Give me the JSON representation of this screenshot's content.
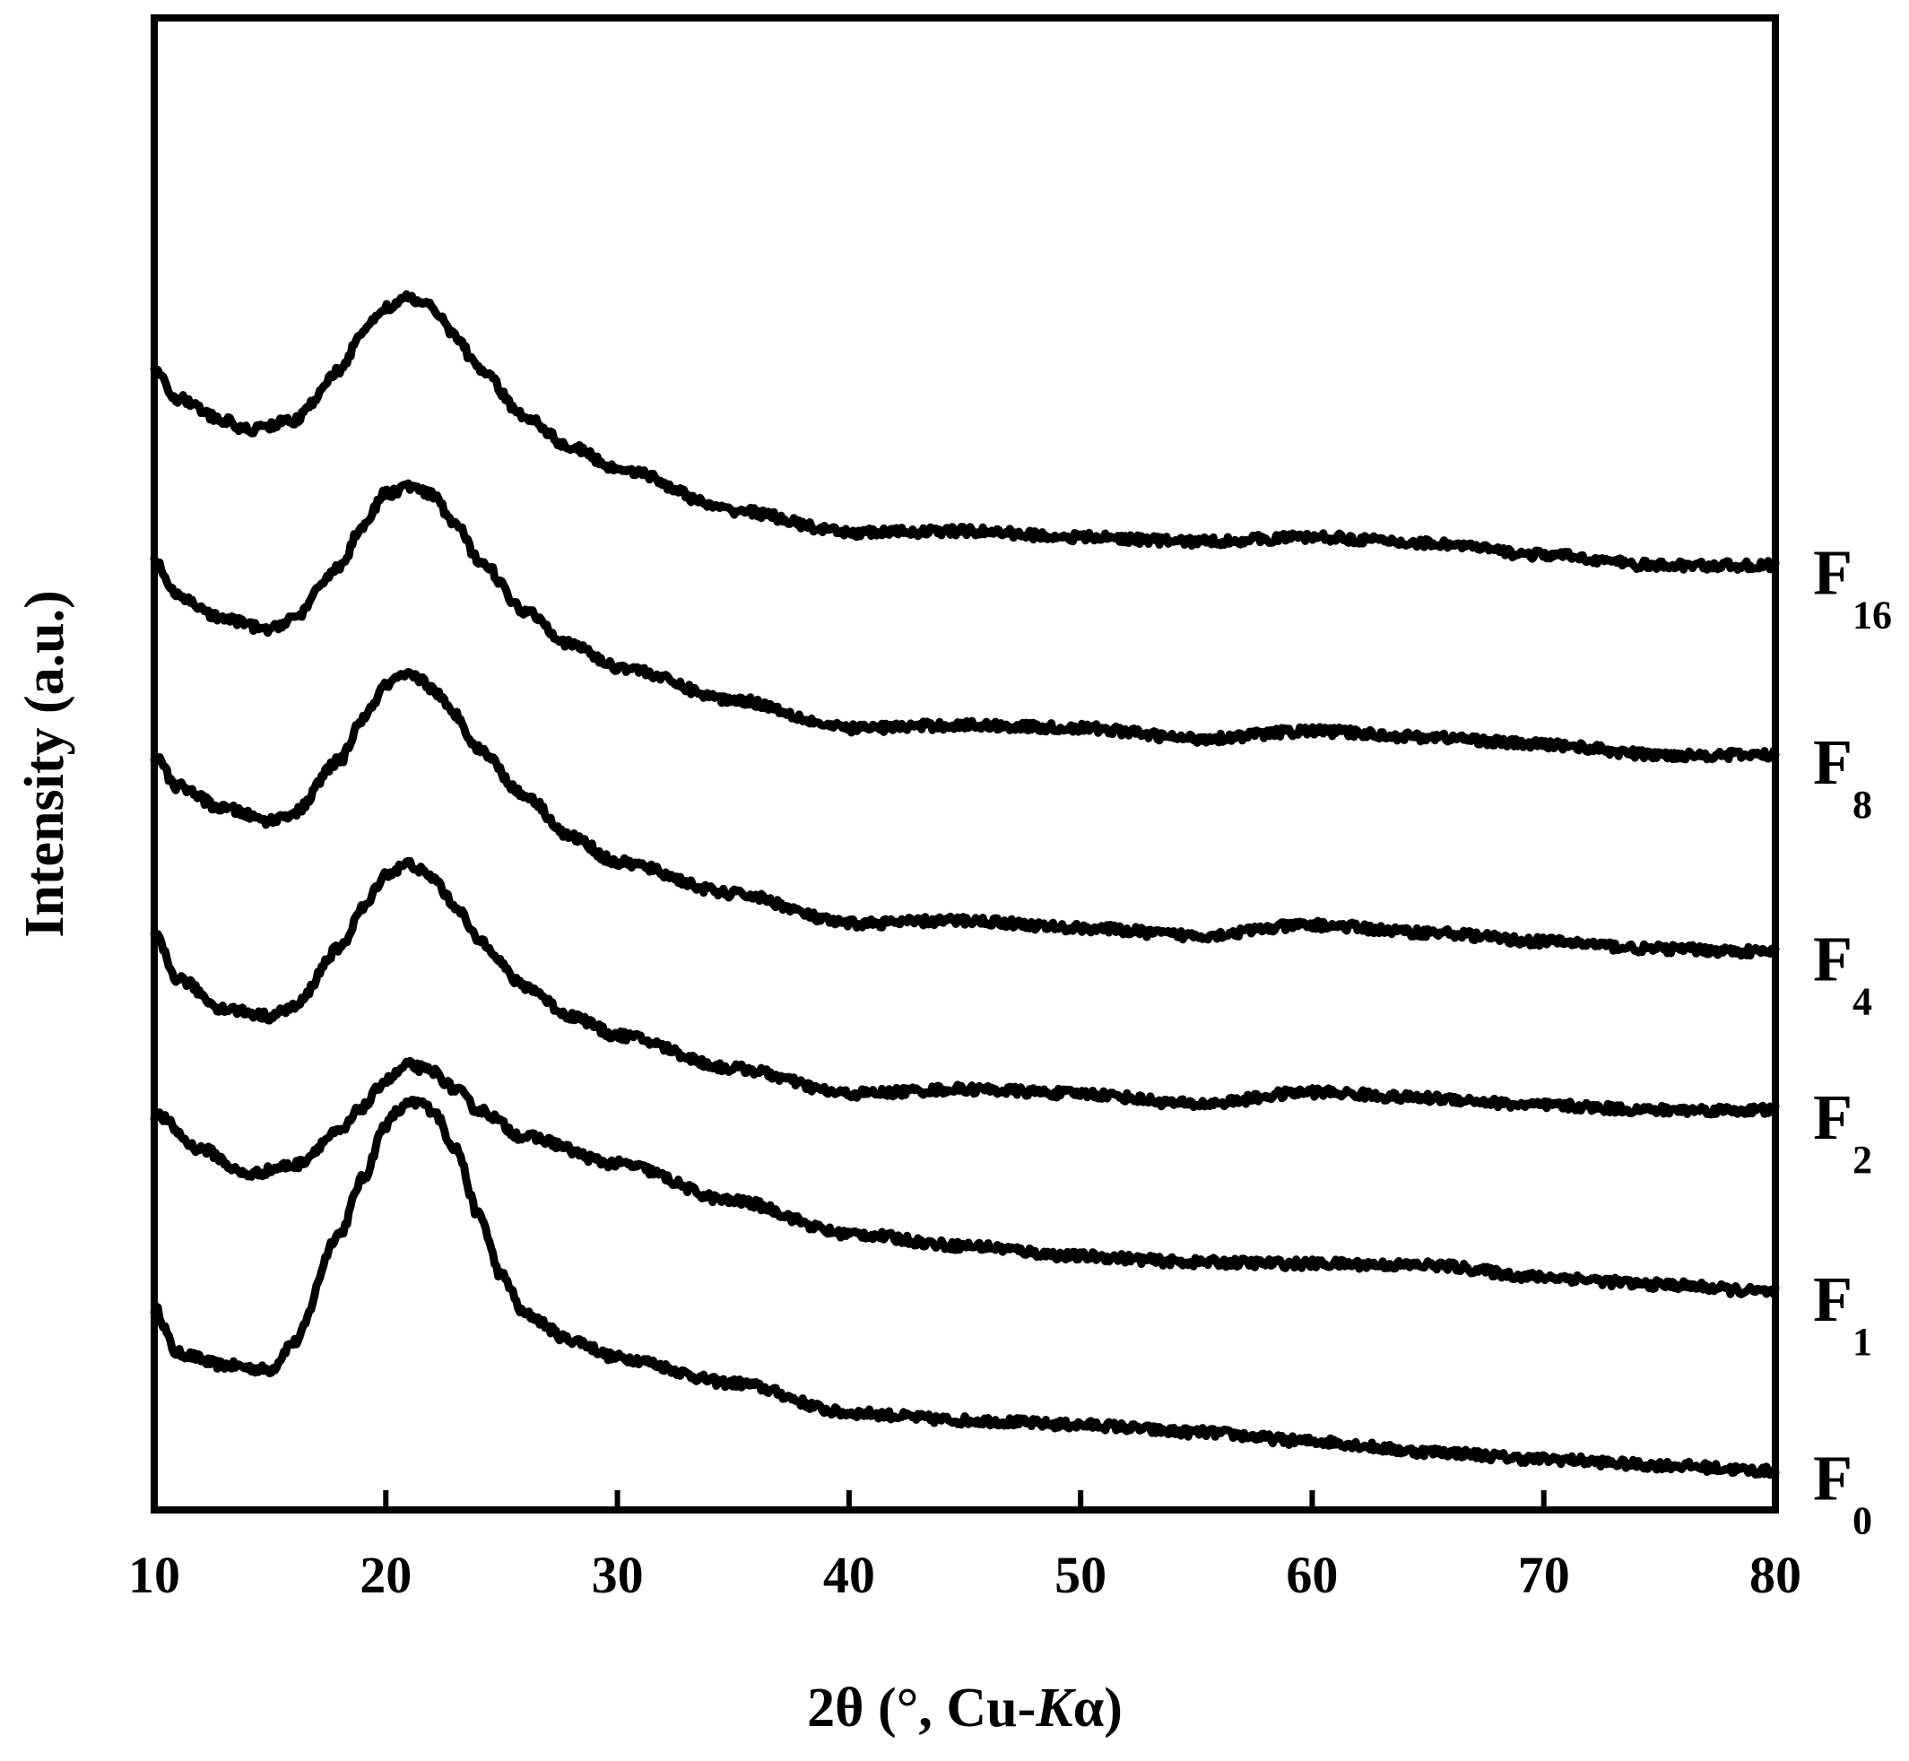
{
  "chart_data": {
    "type": "line",
    "xlabel": "2θ (°, Cu-",
    "xlabel_italic": "K",
    "xlabel_tail": "α)",
    "ylabel": "Intensity (a.u.)",
    "xlim": [
      10,
      80
    ],
    "ylim": [
      0,
      1
    ],
    "x_ticks": [
      "10",
      "20",
      "30",
      "40",
      "50",
      "60",
      "70",
      "80"
    ],
    "x_tick_values": [
      10,
      20,
      30,
      40,
      50,
      60,
      70,
      80
    ],
    "y_ticks": false,
    "grid": false,
    "legend": "none; series labeled at right end",
    "series": [
      {
        "name": "F",
        "sub": "0",
        "x": [
          10,
          11,
          13,
          15,
          16,
          18,
          19,
          20,
          20.5,
          21,
          21.5,
          22,
          23,
          24,
          25,
          26,
          28,
          30,
          35,
          40,
          45,
          50,
          55,
          60,
          65,
          70,
          75,
          80
        ],
        "y": [
          0.135,
          0.105,
          0.097,
          0.094,
          0.112,
          0.185,
          0.222,
          0.258,
          0.267,
          0.272,
          0.273,
          0.268,
          0.243,
          0.198,
          0.157,
          0.131,
          0.114,
          0.102,
          0.085,
          0.065,
          0.06,
          0.057,
          0.052,
          0.046,
          0.039,
          0.034,
          0.03,
          0.026
        ]
      },
      {
        "name": "F",
        "sub": "1",
        "x": [
          10,
          12,
          14,
          16,
          18,
          19,
          20,
          21,
          22,
          23,
          24,
          26,
          30,
          35,
          40,
          45,
          50,
          55,
          60,
          65,
          70,
          75,
          80
        ],
        "y": [
          0.265,
          0.242,
          0.225,
          0.231,
          0.253,
          0.27,
          0.288,
          0.298,
          0.294,
          0.282,
          0.268,
          0.25,
          0.232,
          0.207,
          0.185,
          0.177,
          0.17,
          0.166,
          0.165,
          0.164,
          0.156,
          0.151,
          0.146
        ]
      },
      {
        "name": "F",
        "sub": "2",
        "x": [
          10,
          11,
          13,
          15,
          16,
          18,
          19,
          20,
          21,
          22,
          23,
          24,
          26,
          28,
          30,
          35,
          40,
          45,
          50,
          55,
          60,
          65,
          70,
          75,
          80
        ],
        "y": [
          0.385,
          0.356,
          0.336,
          0.331,
          0.337,
          0.376,
          0.403,
          0.426,
          0.433,
          0.424,
          0.405,
          0.382,
          0.351,
          0.331,
          0.318,
          0.296,
          0.279,
          0.282,
          0.279,
          0.272,
          0.28,
          0.276,
          0.271,
          0.268,
          0.268
        ]
      },
      {
        "name": "F",
        "sub": "4",
        "x": [
          10,
          11,
          13,
          15,
          16,
          18,
          19,
          20,
          20.5,
          21,
          21.5,
          22,
          23,
          24,
          26,
          28,
          30,
          35,
          40,
          45,
          50,
          55,
          60,
          65,
          70,
          75,
          80
        ],
        "y": [
          0.505,
          0.485,
          0.47,
          0.462,
          0.467,
          0.502,
          0.53,
          0.552,
          0.557,
          0.559,
          0.557,
          0.55,
          0.533,
          0.51,
          0.479,
          0.451,
          0.434,
          0.413,
          0.393,
          0.395,
          0.39,
          0.385,
          0.392,
          0.387,
          0.381,
          0.376,
          0.374
        ]
      },
      {
        "name": "F",
        "sub": "8",
        "x": [
          10,
          11,
          13,
          15,
          16,
          18,
          19,
          20,
          21,
          22,
          23,
          24,
          26,
          28,
          30,
          35,
          40,
          45,
          50,
          55,
          60,
          65,
          70,
          75,
          80
        ],
        "y": [
          0.636,
          0.612,
          0.597,
          0.59,
          0.598,
          0.632,
          0.66,
          0.681,
          0.686,
          0.68,
          0.661,
          0.637,
          0.603,
          0.58,
          0.565,
          0.543,
          0.524,
          0.526,
          0.524,
          0.517,
          0.522,
          0.518,
          0.513,
          0.506,
          0.506
        ]
      },
      {
        "name": "F",
        "sub": "16",
        "x": [
          10,
          11,
          13,
          14,
          16,
          18,
          19,
          20,
          21,
          22,
          23,
          24,
          26,
          28,
          30,
          35,
          40,
          45,
          50,
          55,
          60,
          65,
          70,
          75,
          80
        ],
        "y": [
          0.765,
          0.745,
          0.73,
          0.724,
          0.73,
          0.763,
          0.79,
          0.806,
          0.812,
          0.806,
          0.787,
          0.765,
          0.733,
          0.712,
          0.698,
          0.67,
          0.655,
          0.656,
          0.652,
          0.649,
          0.652,
          0.648,
          0.64,
          0.633,
          0.633
        ]
      }
    ]
  }
}
